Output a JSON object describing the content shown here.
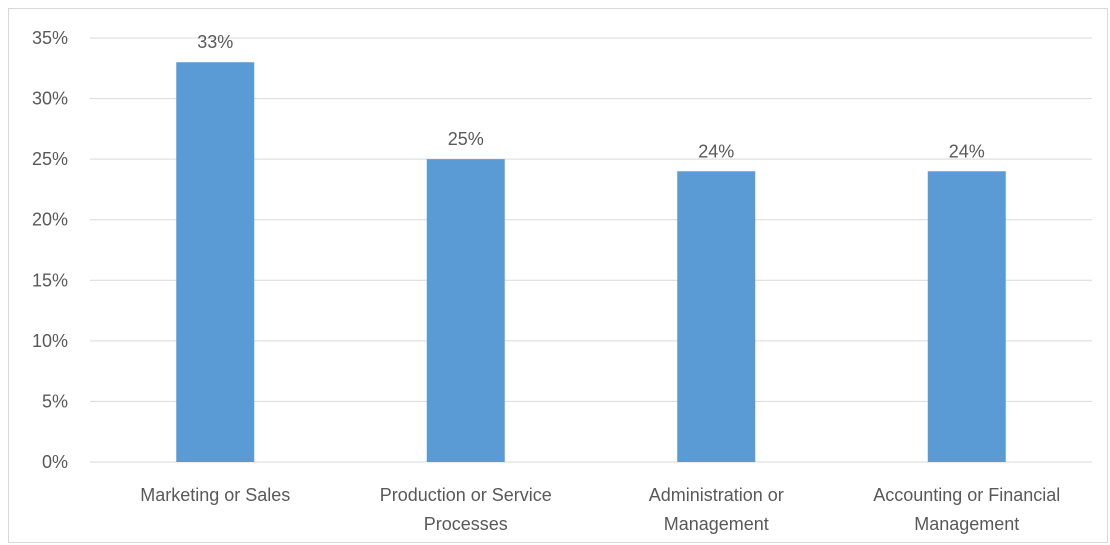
{
  "chart_data": {
    "type": "bar",
    "categories": [
      [
        "Marketing or Sales"
      ],
      [
        "Production or Service",
        "Processes"
      ],
      [
        "Administration or",
        "Management"
      ],
      [
        "Accounting or Financial",
        "Management"
      ]
    ],
    "values": [
      33,
      25,
      24,
      24
    ],
    "data_labels": [
      "33%",
      "25%",
      "24%",
      "24%"
    ],
    "y_ticks": [
      "0%",
      "5%",
      "10%",
      "15%",
      "20%",
      "25%",
      "30%",
      "35%"
    ],
    "ylim": [
      0,
      35
    ],
    "y_unit": "%",
    "grid": true,
    "legend": "none",
    "bar_color": "#5b9bd5"
  }
}
